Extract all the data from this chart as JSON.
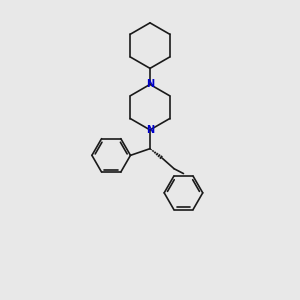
{
  "background_color": "#e8e8e8",
  "bond_color": "#1a1a1a",
  "nitrogen_color": "#0000cc",
  "line_width": 1.2,
  "figsize": [
    3.0,
    3.0
  ],
  "dpi": 100,
  "xlim": [
    -3.5,
    3.5
  ],
  "ylim": [
    -5.5,
    5.5
  ]
}
